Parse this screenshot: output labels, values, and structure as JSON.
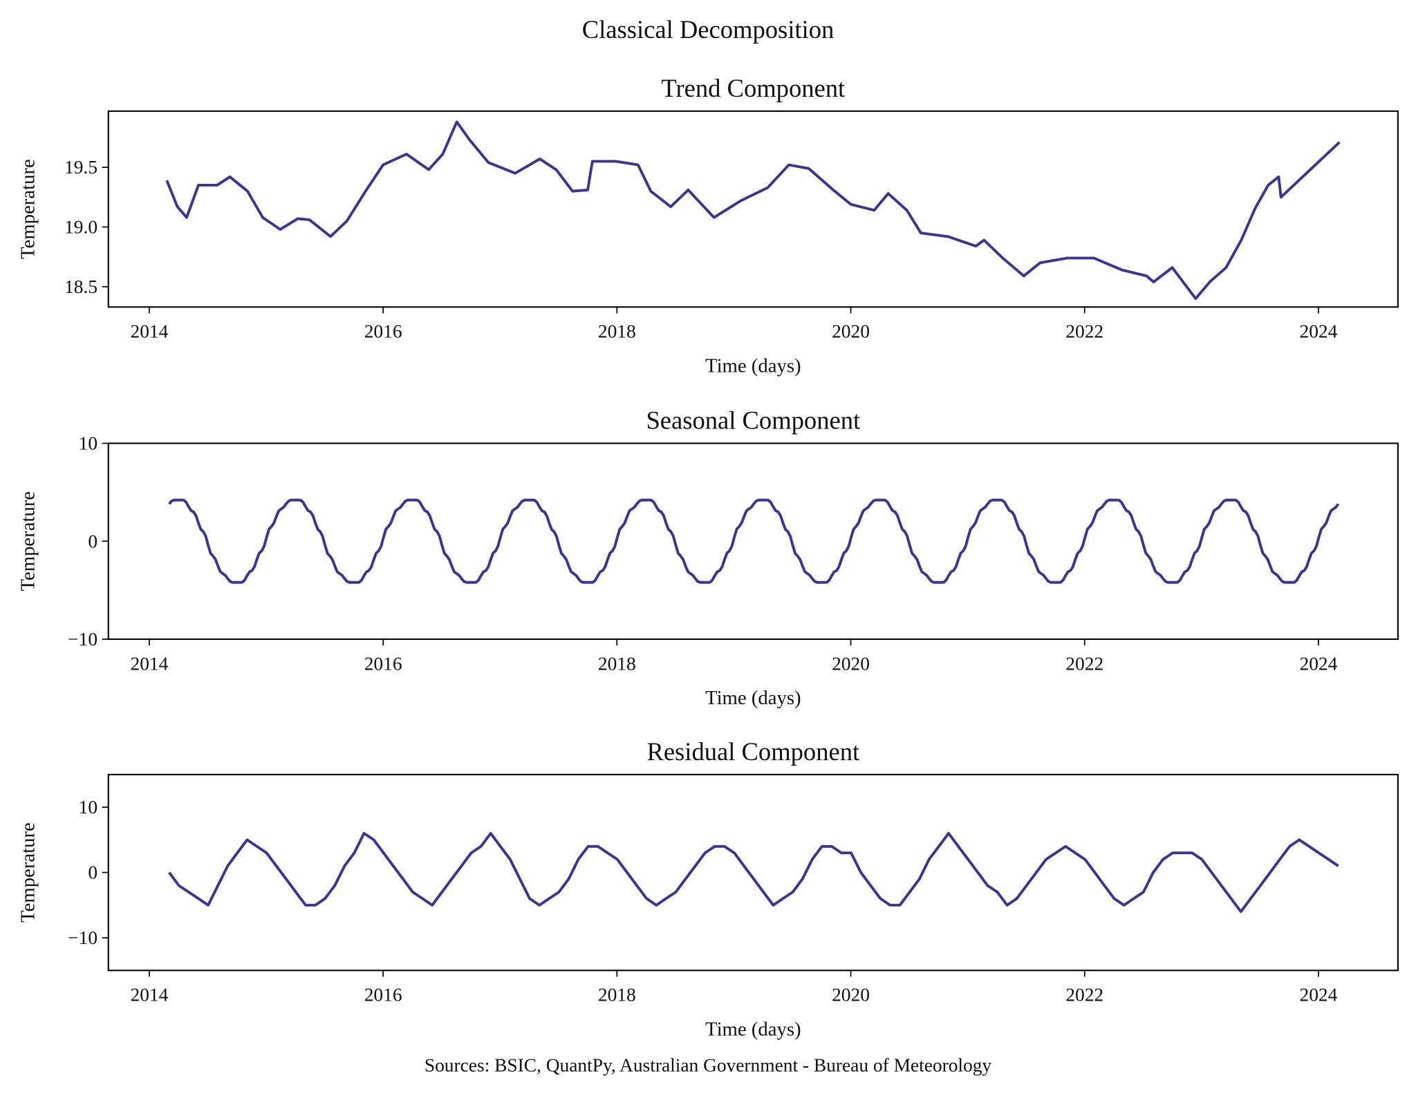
{
  "title": "Classical Decomposition",
  "source": "Sources: BSIC, QuantPy, Australian Government - Bureau of Meteorology",
  "line_color": "#3a3399",
  "chart_data": [
    {
      "type": "line",
      "title": "Trend Component",
      "xlabel": "Time (days)",
      "ylabel": "Temperature",
      "xlim": [
        2013.65,
        2024.68
      ],
      "ylim": [
        18.33,
        19.97
      ],
      "xticks": [
        2014,
        2016,
        2018,
        2020,
        2022,
        2024
      ],
      "yticks": [
        18.5,
        19.0,
        19.5
      ],
      "ytick_labels": [
        "18.5",
        "19.0",
        "19.5"
      ],
      "grid": false,
      "x": [
        2014.15,
        2014.24,
        2014.32,
        2014.42,
        2014.58,
        2014.69,
        2014.84,
        2014.97,
        2015.12,
        2015.27,
        2015.37,
        2015.55,
        2015.69,
        2015.85,
        2016.0,
        2016.2,
        2016.39,
        2016.51,
        2016.63,
        2016.74,
        2016.9,
        2017.13,
        2017.34,
        2017.48,
        2017.62,
        2017.75,
        2017.79,
        2017.99,
        2018.18,
        2018.29,
        2018.46,
        2018.61,
        2018.83,
        2019.06,
        2019.29,
        2019.47,
        2019.64,
        2019.85,
        2020.0,
        2020.2,
        2020.32,
        2020.48,
        2020.6,
        2020.83,
        2021.07,
        2021.14,
        2021.3,
        2021.48,
        2021.62,
        2021.85,
        2022.08,
        2022.32,
        2022.53,
        2022.59,
        2022.75,
        2022.95,
        2023.07,
        2023.21,
        2023.34,
        2023.46,
        2023.57,
        2023.66,
        2023.68,
        2024.18
      ],
      "y": [
        19.39,
        19.17,
        19.08,
        19.35,
        19.35,
        19.42,
        19.3,
        19.08,
        18.98,
        19.07,
        19.06,
        18.92,
        19.05,
        19.3,
        19.52,
        19.61,
        19.48,
        19.61,
        19.88,
        19.73,
        19.54,
        19.45,
        19.57,
        19.48,
        19.3,
        19.31,
        19.55,
        19.55,
        19.52,
        19.3,
        19.17,
        19.31,
        19.08,
        19.22,
        19.33,
        19.52,
        19.49,
        19.31,
        19.19,
        19.14,
        19.28,
        19.14,
        18.95,
        18.92,
        18.84,
        18.89,
        18.74,
        18.59,
        18.7,
        18.74,
        18.74,
        18.64,
        18.59,
        18.54,
        18.66,
        18.4,
        18.54,
        18.66,
        18.89,
        19.16,
        19.35,
        19.42,
        19.25,
        19.71
      ]
    },
    {
      "type": "line",
      "title": "Seasonal Component",
      "xlabel": "Time (days)",
      "ylabel": "Temperature",
      "xlim": [
        2013.65,
        2024.68
      ],
      "ylim": [
        -10,
        10
      ],
      "xticks": [
        2014,
        2016,
        2018,
        2020,
        2022,
        2024
      ],
      "yticks": [
        -10,
        0,
        10
      ],
      "ytick_labels": [
        "−10",
        "0",
        "10"
      ],
      "grid": false,
      "x_range": [
        2014.17,
        2024.17
      ],
      "annual_monthly_pattern": [
        1.5,
        3.3,
        4.2,
        4.2,
        3.0,
        1.0,
        -1.5,
        -3.3,
        -4.2,
        -4.2,
        -3.0,
        -1.0
      ]
    },
    {
      "type": "line",
      "title": "Residual Component",
      "xlabel": "Time (days)",
      "ylabel": "Temperature",
      "xlim": [
        2013.65,
        2024.68
      ],
      "ylim": [
        -15,
        15
      ],
      "xticks": [
        2014,
        2016,
        2018,
        2020,
        2022,
        2024
      ],
      "yticks": [
        -10,
        0,
        10
      ],
      "ytick_labels": [
        "−10",
        "0",
        "10"
      ],
      "grid": false,
      "x_start": 2014.17,
      "x_step_months": 1,
      "y": [
        0,
        -2,
        -3,
        -4,
        -5,
        -2,
        1,
        3,
        5,
        4,
        3,
        1,
        -1,
        -3,
        -5,
        -5,
        -4,
        -2,
        1,
        3,
        6,
        5,
        3,
        1,
        -1,
        -3,
        -4,
        -5,
        -3,
        -1,
        1,
        3,
        4,
        6,
        4,
        2,
        -1,
        -4,
        -5,
        -4,
        -3,
        -1,
        2,
        4,
        4,
        3,
        2,
        0,
        -2,
        -4,
        -5,
        -4,
        -3,
        -1,
        1,
        3,
        4,
        4,
        3,
        1,
        -1,
        -3,
        -5,
        -4,
        -3,
        -1,
        2,
        4,
        4,
        3,
        3,
        0,
        -2,
        -4,
        -5,
        -5,
        -3,
        -1,
        2,
        4,
        6,
        4,
        2,
        0,
        -2,
        -3,
        -5,
        -4,
        -2,
        0,
        2,
        3,
        4,
        3,
        2,
        0,
        -2,
        -4,
        -5,
        -4,
        -3,
        0,
        2,
        3,
        3,
        3,
        2,
        0,
        -2,
        -4,
        -6,
        -4,
        -2,
        0,
        2,
        4,
        5,
        4,
        3,
        2,
        1
      ]
    }
  ]
}
